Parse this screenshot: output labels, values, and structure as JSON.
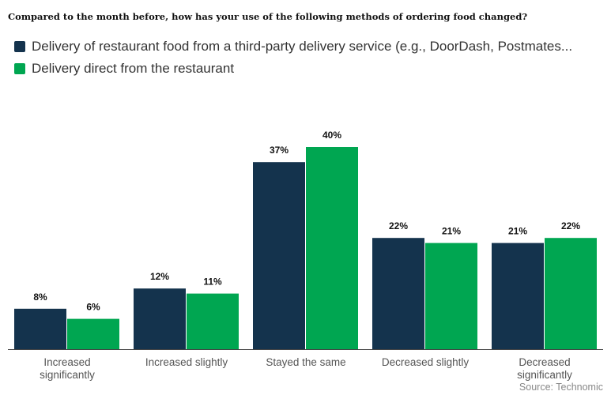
{
  "chart_data": {
    "type": "bar",
    "title": "Compared to the month before, how has your use of the following methods of ordering food changed?",
    "categories": [
      [
        "Increased",
        "significantly"
      ],
      [
        "Increased slightly"
      ],
      [
        "Stayed the same"
      ],
      [
        "Decreased slightly"
      ],
      [
        "Decreased",
        "significantly"
      ]
    ],
    "series": [
      {
        "name": "Delivery of restaurant food from a third-party delivery service (e.g., DoorDash, Postmates...",
        "color": "#14334d",
        "values": [
          8,
          12,
          37,
          22,
          21
        ],
        "labels": [
          "8%",
          "12%",
          "37%",
          "22%",
          "21%"
        ]
      },
      {
        "name": "Delivery direct from the restaurant",
        "color": "#00a651",
        "values": [
          6,
          11,
          40,
          21,
          22
        ],
        "labels": [
          "6%",
          "11%",
          "40%",
          "21%",
          "22%"
        ]
      }
    ],
    "ylim": [
      0,
      40
    ],
    "grid": false,
    "legend": "top-left",
    "source": "Source: Technomic"
  }
}
